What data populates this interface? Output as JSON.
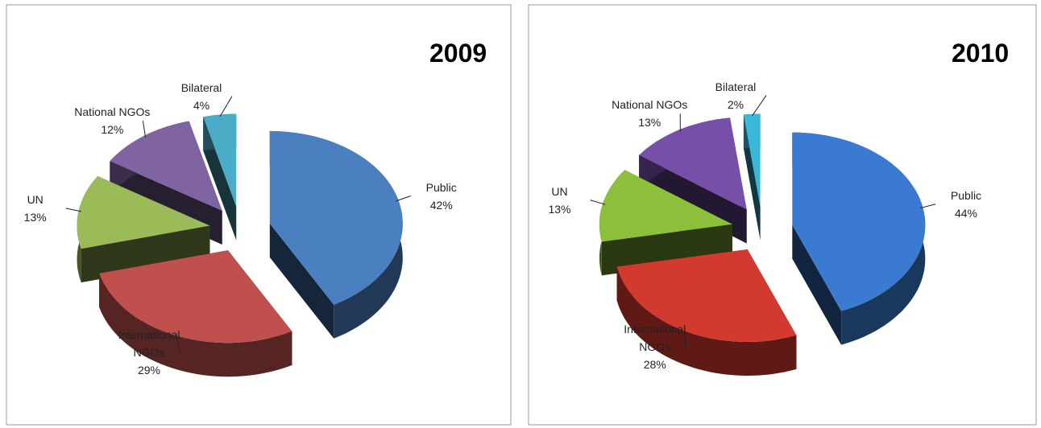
{
  "chart_data": [
    {
      "type": "pie",
      "title": "2009",
      "categories": [
        "Public",
        "International NGOs",
        "UN",
        "National NGOs",
        "Bilateral"
      ],
      "values": [
        42,
        29,
        13,
        12,
        4
      ],
      "value_labels": [
        "42%",
        "29%",
        "13%",
        "12%",
        "4%"
      ],
      "colors": [
        "#4a7fc0",
        "#c0504d",
        "#9bbb59",
        "#8064a2",
        "#4bacc6"
      ]
    },
    {
      "type": "pie",
      "title": "2010",
      "categories": [
        "Public",
        "International NGOs",
        "UN",
        "National NGOs",
        "Bilateral"
      ],
      "values": [
        44,
        28,
        13,
        13,
        2
      ],
      "value_labels": [
        "44%",
        "28%",
        "13%",
        "13%",
        "2%"
      ],
      "colors": [
        "#3a7ad0",
        "#d23a30",
        "#8cbf3a",
        "#7650a8",
        "#3ab8da"
      ]
    }
  ]
}
